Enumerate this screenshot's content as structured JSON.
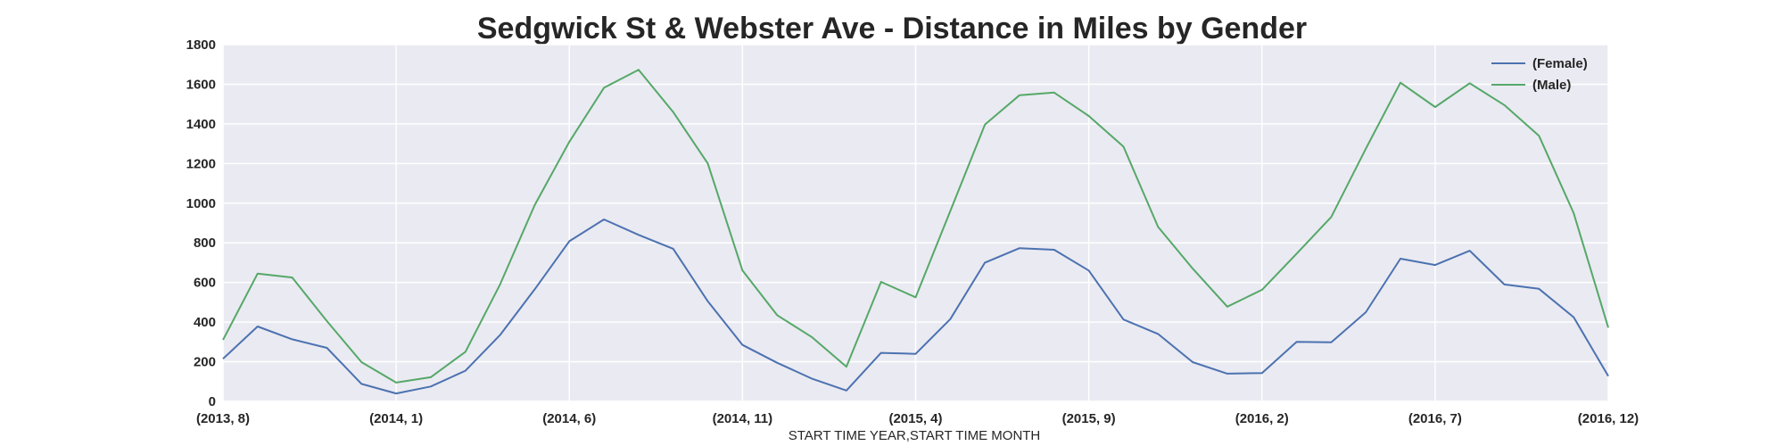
{
  "chart_data": {
    "type": "line",
    "title": "Sedgwick St & Webster Ave - Distance in Miles by Gender",
    "xlabel": "START TIME YEAR,START TIME MONTH",
    "ylabel": "",
    "ylim": [
      0,
      1800
    ],
    "yticks": [
      0,
      200,
      400,
      600,
      800,
      1000,
      1200,
      1400,
      1600,
      1800
    ],
    "grid": true,
    "legend_position": "top-right",
    "categories": [
      "(2013, 8)",
      "(2013, 9)",
      "(2013, 10)",
      "(2013, 11)",
      "(2013, 12)",
      "(2014, 1)",
      "(2014, 2)",
      "(2014, 3)",
      "(2014, 4)",
      "(2014, 5)",
      "(2014, 6)",
      "(2014, 7)",
      "(2014, 8)",
      "(2014, 9)",
      "(2014, 10)",
      "(2014, 11)",
      "(2014, 12)",
      "(2015, 1)",
      "(2015, 2)",
      "(2015, 3)",
      "(2015, 4)",
      "(2015, 5)",
      "(2015, 6)",
      "(2015, 7)",
      "(2015, 8)",
      "(2015, 9)",
      "(2015, 10)",
      "(2015, 11)",
      "(2015, 12)",
      "(2016, 1)",
      "(2016, 2)",
      "(2016, 3)",
      "(2016, 4)",
      "(2016, 5)",
      "(2016, 6)",
      "(2016, 7)",
      "(2016, 8)",
      "(2016, 9)",
      "(2016, 10)",
      "(2016, 11)",
      "(2016, 12)"
    ],
    "tick_labels": [
      "(2013, 8)",
      "(2014, 1)",
      "(2014, 6)",
      "(2014, 11)",
      "(2015, 4)",
      "(2015, 9)",
      "(2016, 2)",
      "(2016, 7)",
      "(2016, 12)"
    ],
    "tick_indices": [
      0,
      5,
      10,
      15,
      20,
      25,
      30,
      35,
      40
    ],
    "series": [
      {
        "name": "(Female)",
        "color": "#4c72b0",
        "values": [
          215,
          378,
          313,
          270,
          88,
          40,
          75,
          155,
          335,
          565,
          808,
          918,
          840,
          770,
          505,
          285,
          195,
          115,
          55,
          245,
          240,
          415,
          700,
          773,
          765,
          660,
          413,
          340,
          198,
          140,
          143,
          300,
          298,
          450,
          720,
          688,
          760,
          590,
          568,
          425,
          128
        ]
      },
      {
        "name": "(Male)",
        "color": "#55a868",
        "values": [
          310,
          645,
          625,
          405,
          198,
          95,
          122,
          250,
          590,
          990,
          1310,
          1582,
          1673,
          1460,
          1200,
          660,
          435,
          325,
          175,
          603,
          525,
          960,
          1397,
          1545,
          1558,
          1440,
          1285,
          880,
          670,
          478,
          563,
          745,
          930,
          1275,
          1608,
          1485,
          1605,
          1495,
          1340,
          950,
          372
        ]
      }
    ]
  }
}
